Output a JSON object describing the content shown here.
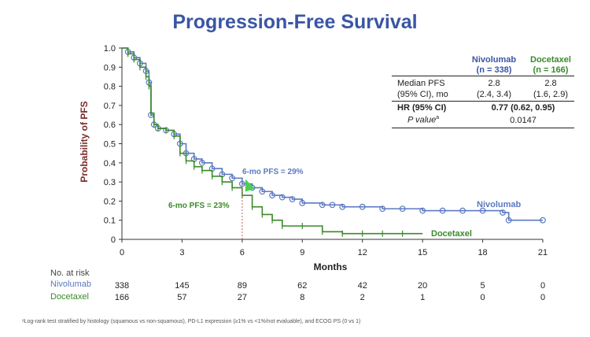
{
  "title": "Progression-Free Survival",
  "table": {
    "col1_label": "Nivolumab",
    "col1_n": "(n = 338)",
    "col2_label": "Docetaxel",
    "col2_n": "(n = 166)",
    "rows": [
      {
        "label1": "Median PFS",
        "label2": "(95% CI), mo",
        "v1a": "2.8",
        "v1b": "(2.4, 3.4)",
        "v2a": "2.8",
        "v2b": "(1.6, 2.9)"
      },
      {
        "label": "HR (95% CI)",
        "value": "0.77 (0.62, 0.95)"
      },
      {
        "label": "P value",
        "sup": "a",
        "value": "0.0147"
      }
    ]
  },
  "annotations": {
    "nivo_6mo": "6-mo PFS = 29%",
    "doce_6mo": "6-mo PFS = 23%",
    "nivo_label": "Nivolumab",
    "doce_label": "Docetaxel"
  },
  "risk": {
    "header": "No. at risk",
    "nivo_label": "Nivolumab",
    "doce_label": "Docetaxel",
    "nivo": [
      "338",
      "145",
      "89",
      "62",
      "42",
      "20",
      "5",
      "0"
    ],
    "doce": [
      "166",
      "57",
      "27",
      "8",
      "2",
      "1",
      "0",
      "0"
    ]
  },
  "footnote": "ᵃLog-rank test stratified by histology (squamous vs non-squamous), PD-L1 expression (≥1% vs <1%/not evaluable), and ECOG PS (0 vs 1)",
  "colors": {
    "nivo": "#5b79c2",
    "doce": "#3a8a2a",
    "title": "#3a55a4",
    "axis_label": "#7a2b2b",
    "arrow": "#4cd04c"
  },
  "chart_data": {
    "type": "line",
    "title": "Progression-Free Survival",
    "xlabel": "Months",
    "ylabel": "Probability of PFS",
    "xlim": [
      0,
      21
    ],
    "ylim": [
      0,
      1.0
    ],
    "xticks": [
      0,
      3,
      6,
      9,
      12,
      15,
      18,
      21
    ],
    "yticks": [
      0,
      0.1,
      0.2,
      0.3,
      0.4,
      0.5,
      0.6,
      0.7,
      0.8,
      0.9,
      1.0
    ],
    "series": [
      {
        "name": "Nivolumab",
        "x": [
          0,
          0.3,
          0.6,
          0.9,
          1.2,
          1.35,
          1.45,
          1.6,
          1.8,
          2.2,
          2.6,
          2.9,
          3.2,
          3.6,
          4.0,
          4.5,
          5.0,
          5.5,
          6.0,
          6.5,
          7.0,
          7.5,
          8.0,
          8.5,
          9.0,
          10.0,
          10.5,
          11.0,
          12.0,
          13.0,
          14.0,
          15.0,
          16.0,
          17.0,
          18.0,
          19.0,
          19.3,
          21.0
        ],
        "y": [
          1.0,
          0.98,
          0.95,
          0.92,
          0.88,
          0.82,
          0.65,
          0.6,
          0.58,
          0.57,
          0.55,
          0.5,
          0.45,
          0.42,
          0.4,
          0.37,
          0.34,
          0.32,
          0.29,
          0.27,
          0.25,
          0.23,
          0.22,
          0.21,
          0.19,
          0.18,
          0.18,
          0.17,
          0.17,
          0.16,
          0.16,
          0.15,
          0.15,
          0.15,
          0.15,
          0.14,
          0.1,
          0.1
        ]
      },
      {
        "name": "Docetaxel",
        "x": [
          0,
          0.3,
          0.6,
          0.9,
          1.2,
          1.35,
          1.45,
          1.6,
          1.8,
          2.2,
          2.6,
          2.9,
          3.2,
          3.6,
          4.0,
          4.5,
          5.0,
          5.5,
          6.0,
          6.5,
          7.0,
          7.5,
          8.0,
          9.0,
          10.0,
          11.0,
          12.0,
          13.0,
          14.0,
          15.0
        ],
        "y": [
          1.0,
          0.97,
          0.94,
          0.9,
          0.85,
          0.8,
          0.66,
          0.6,
          0.58,
          0.57,
          0.54,
          0.45,
          0.41,
          0.38,
          0.36,
          0.33,
          0.3,
          0.27,
          0.23,
          0.17,
          0.13,
          0.1,
          0.07,
          0.07,
          0.04,
          0.03,
          0.03,
          0.03,
          0.03,
          0.03
        ]
      }
    ]
  }
}
